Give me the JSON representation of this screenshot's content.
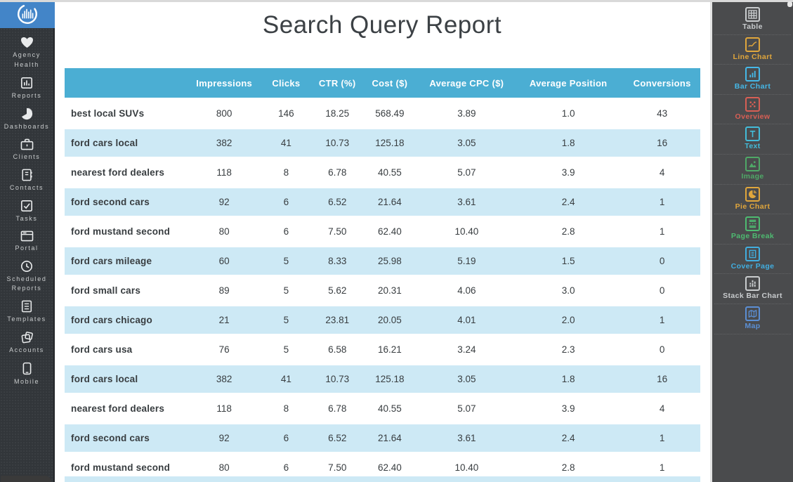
{
  "report": {
    "title": "Search Query Report"
  },
  "left_sidebar": {
    "items": [
      {
        "label": "Agency Health",
        "icon": "heart-icon"
      },
      {
        "label": "Reports",
        "icon": "report-icon"
      },
      {
        "label": "Dashboards",
        "icon": "pie-icon"
      },
      {
        "label": "Clients",
        "icon": "briefcase-icon"
      },
      {
        "label": "Contacts",
        "icon": "address-book-icon"
      },
      {
        "label": "Tasks",
        "icon": "checkbox-icon"
      },
      {
        "label": "Portal",
        "icon": "browser-icon"
      },
      {
        "label": "Scheduled Reports",
        "icon": "clock-icon"
      },
      {
        "label": "Templates",
        "icon": "document-icon"
      },
      {
        "label": "Accounts",
        "icon": "papers-icon"
      },
      {
        "label": "Mobile",
        "icon": "phone-icon"
      }
    ]
  },
  "table": {
    "columns": [
      "",
      "Impressions",
      "Clicks",
      "CTR (%)",
      "Cost ($)",
      "Average CPC ($)",
      "Average Position",
      "Conversions"
    ],
    "rows": [
      {
        "query": "best local SUVs",
        "values": [
          "800",
          "146",
          "18.25",
          "568.49",
          "3.89",
          "1.0",
          "43"
        ]
      },
      {
        "query": "ford cars local",
        "values": [
          "382",
          "41",
          "10.73",
          "125.18",
          "3.05",
          "1.8",
          "16"
        ]
      },
      {
        "query": "nearest ford dealers",
        "values": [
          "118",
          "8",
          "6.78",
          "40.55",
          "5.07",
          "3.9",
          "4"
        ]
      },
      {
        "query": "ford second cars",
        "values": [
          "92",
          "6",
          "6.52",
          "21.64",
          "3.61",
          "2.4",
          "1"
        ]
      },
      {
        "query": "ford mustand second",
        "values": [
          "80",
          "6",
          "7.50",
          "62.40",
          "10.40",
          "2.8",
          "1"
        ]
      },
      {
        "query": "ford cars mileage",
        "values": [
          "60",
          "5",
          "8.33",
          "25.98",
          "5.19",
          "1.5",
          "0"
        ]
      },
      {
        "query": "ford small cars",
        "values": [
          "89",
          "5",
          "5.62",
          "20.31",
          "4.06",
          "3.0",
          "0"
        ]
      },
      {
        "query": "ford cars chicago",
        "values": [
          "21",
          "5",
          "23.81",
          "20.05",
          "4.01",
          "2.0",
          "1"
        ]
      },
      {
        "query": "ford cars usa",
        "values": [
          "76",
          "5",
          "6.58",
          "16.21",
          "3.24",
          "2.3",
          "0"
        ]
      },
      {
        "query": "ford cars local",
        "values": [
          "382",
          "41",
          "10.73",
          "125.18",
          "3.05",
          "1.8",
          "16"
        ]
      },
      {
        "query": "nearest ford dealers",
        "values": [
          "118",
          "8",
          "6.78",
          "40.55",
          "5.07",
          "3.9",
          "4"
        ]
      },
      {
        "query": "ford second cars",
        "values": [
          "92",
          "6",
          "6.52",
          "21.64",
          "3.61",
          "2.4",
          "1"
        ]
      },
      {
        "query": "ford mustand second",
        "values": [
          "80",
          "6",
          "7.50",
          "62.40",
          "10.40",
          "2.8",
          "1"
        ]
      }
    ],
    "column_widths": [
      "20%",
      "10.2%",
      "9.3%",
      "6.8%",
      "9.7%",
      "14.5%",
      "17.5%",
      "12%"
    ]
  },
  "right_sidebar": {
    "items": [
      {
        "label": "Table",
        "color": "#c9ccce",
        "icon": "table-icon"
      },
      {
        "label": "Line Chart",
        "color": "#e0a63c",
        "icon": "line-chart-icon"
      },
      {
        "label": "Bar Chart",
        "color": "#45b8e8",
        "icon": "bar-chart-icon"
      },
      {
        "label": "Overview",
        "color": "#d85f55",
        "icon": "overview-icon"
      },
      {
        "label": "Text",
        "color": "#43bcd9",
        "icon": "text-icon"
      },
      {
        "label": "Image",
        "color": "#4fa867",
        "icon": "image-icon"
      },
      {
        "label": "Pie Chart",
        "color": "#e0a63c",
        "icon": "pie-chart-icon"
      },
      {
        "label": "Page Break",
        "color": "#4ebb71",
        "icon": "page-break-icon"
      },
      {
        "label": "Cover Page",
        "color": "#41aee0",
        "icon": "cover-page-icon"
      },
      {
        "label": "Stack Bar Chart",
        "color": "#c9ccce",
        "icon": "stack-bar-chart-icon"
      },
      {
        "label": "Map",
        "color": "#5b8fd4",
        "icon": "map-icon"
      }
    ]
  },
  "colors": {
    "header_blue": "#4baed3",
    "row_blue": "#cde9f5",
    "logo_blue": "#4385c8",
    "left_sidebar_bg": "#32363a",
    "right_sidebar_bg": "#4a4b4d",
    "text_dark": "#383d40"
  }
}
